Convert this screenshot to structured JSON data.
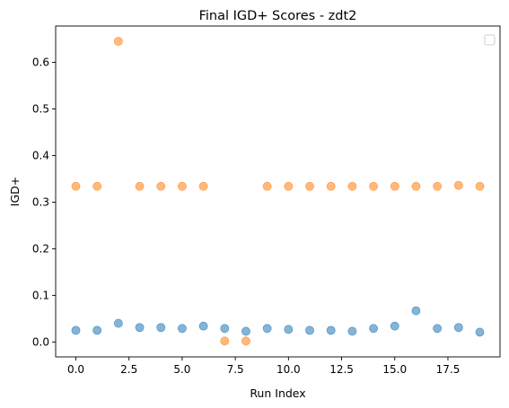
{
  "chart_data": {
    "type": "scatter",
    "title": "Final IGD+ Scores - zdt2",
    "xlabel": "Run Index",
    "ylabel": "IGD+",
    "xlim": [
      -0.95,
      19.95
    ],
    "ylim": [
      -0.032,
      0.678
    ],
    "xticks": [
      0.0,
      2.5,
      5.0,
      7.5,
      10.0,
      12.5,
      15.0,
      17.5
    ],
    "xtick_labels": [
      "0.0",
      "2.5",
      "5.0",
      "7.5",
      "10.0",
      "12.5",
      "15.0",
      "17.5"
    ],
    "yticks": [
      0.0,
      0.1,
      0.2,
      0.3,
      0.4,
      0.5,
      0.6
    ],
    "ytick_labels": [
      "0.0",
      "0.1",
      "0.2",
      "0.3",
      "0.4",
      "0.5",
      "0.6"
    ],
    "grid": false,
    "legend": {
      "location": "upper right",
      "entries": []
    },
    "series": [
      {
        "color": "#1f77b4",
        "x": [
          0,
          1,
          2,
          3,
          4,
          5,
          6,
          7,
          8,
          9,
          10,
          11,
          12,
          13,
          14,
          15,
          16,
          17,
          18,
          19
        ],
        "y": [
          0.025,
          0.025,
          0.04,
          0.031,
          0.031,
          0.029,
          0.034,
          0.029,
          0.023,
          0.029,
          0.027,
          0.025,
          0.025,
          0.023,
          0.029,
          0.034,
          0.067,
          0.029,
          0.031,
          0.021
        ]
      },
      {
        "color": "#ff7f0e",
        "x": [
          0,
          1,
          2,
          3,
          4,
          5,
          6,
          7,
          8,
          9,
          10,
          11,
          12,
          13,
          14,
          15,
          16,
          17,
          18,
          19
        ],
        "y": [
          0.334,
          0.334,
          0.645,
          0.334,
          0.334,
          0.334,
          0.334,
          0.002,
          0.002,
          0.334,
          0.334,
          0.334,
          0.334,
          0.334,
          0.334,
          0.334,
          0.334,
          0.334,
          0.336,
          0.334
        ]
      }
    ]
  }
}
